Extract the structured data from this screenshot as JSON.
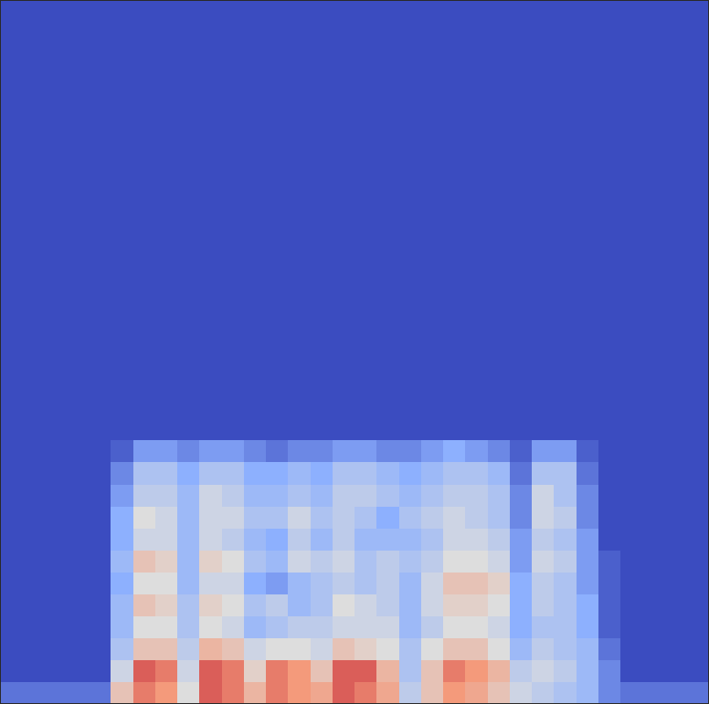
{
  "chart_data": {
    "type": "heatmap",
    "tick_labels": false,
    "xlim": [
      0,
      32
    ],
    "ylim": [
      0,
      32
    ],
    "zlim": [
      0,
      1
    ],
    "z": [
      [
        0.1,
        0.1,
        0.1,
        0.1,
        0.1,
        0.6,
        0.8,
        0.75,
        0.5,
        0.85,
        0.8,
        0.65,
        0.8,
        0.75,
        0.7,
        0.85,
        0.8,
        0.7,
        0.4,
        0.6,
        0.75,
        0.7,
        0.6,
        0.45,
        0.4,
        0.35,
        0.3,
        0.15,
        0.1,
        0.1,
        0.1,
        0.1
      ],
      [
        0,
        0,
        0,
        0,
        0,
        0.45,
        0.85,
        0.8,
        0.45,
        0.85,
        0.8,
        0.55,
        0.8,
        0.75,
        0.6,
        0.85,
        0.85,
        0.65,
        0.35,
        0.6,
        0.8,
        0.75,
        0.65,
        0.4,
        0.45,
        0.4,
        0.3,
        0.15,
        0,
        0,
        0,
        0
      ],
      [
        0,
        0,
        0,
        0,
        0,
        0.35,
        0.6,
        0.6,
        0.4,
        0.65,
        0.6,
        0.45,
        0.5,
        0.5,
        0.45,
        0.6,
        0.55,
        0.5,
        0.35,
        0.5,
        0.6,
        0.6,
        0.5,
        0.3,
        0.4,
        0.35,
        0.3,
        0.1,
        0,
        0,
        0,
        0
      ],
      [
        0,
        0,
        0,
        0,
        0,
        0.3,
        0.5,
        0.5,
        0.35,
        0.5,
        0.45,
        0.3,
        0.35,
        0.4,
        0.4,
        0.45,
        0.45,
        0.45,
        0.3,
        0.4,
        0.5,
        0.5,
        0.45,
        0.25,
        0.35,
        0.35,
        0.25,
        0.05,
        0,
        0,
        0,
        0
      ],
      [
        0,
        0,
        0,
        0,
        0,
        0.3,
        0.6,
        0.55,
        0.35,
        0.55,
        0.5,
        0.35,
        0.4,
        0.3,
        0.35,
        0.5,
        0.45,
        0.4,
        0.3,
        0.45,
        0.55,
        0.55,
        0.5,
        0.25,
        0.4,
        0.35,
        0.25,
        0.05,
        0,
        0,
        0,
        0
      ],
      [
        0,
        0,
        0,
        0,
        0,
        0.25,
        0.5,
        0.5,
        0.3,
        0.45,
        0.45,
        0.25,
        0.2,
        0.3,
        0.35,
        0.4,
        0.35,
        0.4,
        0.3,
        0.45,
        0.6,
        0.6,
        0.55,
        0.25,
        0.4,
        0.35,
        0.2,
        0.05,
        0,
        0,
        0,
        0
      ],
      [
        0,
        0,
        0,
        0,
        0,
        0.3,
        0.6,
        0.55,
        0.3,
        0.55,
        0.5,
        0.35,
        0.3,
        0.45,
        0.4,
        0.45,
        0.35,
        0.4,
        0.35,
        0.4,
        0.5,
        0.5,
        0.45,
        0.2,
        0.45,
        0.4,
        0.2,
        0.05,
        0,
        0,
        0,
        0
      ],
      [
        0,
        0,
        0,
        0,
        0,
        0.25,
        0.45,
        0.45,
        0.3,
        0.45,
        0.4,
        0.3,
        0.25,
        0.4,
        0.3,
        0.4,
        0.3,
        0.3,
        0.3,
        0.35,
        0.45,
        0.45,
        0.4,
        0.2,
        0.4,
        0.35,
        0.2,
        0,
        0,
        0,
        0,
        0
      ],
      [
        0,
        0,
        0,
        0,
        0,
        0.25,
        0.5,
        0.45,
        0.3,
        0.45,
        0.45,
        0.35,
        0.35,
        0.45,
        0.35,
        0.4,
        0.35,
        0.25,
        0.35,
        0.4,
        0.45,
        0.4,
        0.35,
        0.15,
        0.45,
        0.4,
        0.15,
        0,
        0,
        0,
        0,
        0
      ],
      [
        0,
        0,
        0,
        0,
        0,
        0.2,
        0.4,
        0.4,
        0.3,
        0.45,
        0.4,
        0.3,
        0.3,
        0.35,
        0.3,
        0.4,
        0.4,
        0.35,
        0.3,
        0.35,
        0.4,
        0.4,
        0.35,
        0.15,
        0.45,
        0.35,
        0.15,
        0,
        0,
        0,
        0,
        0
      ],
      [
        0,
        0,
        0,
        0,
        0,
        0.15,
        0.35,
        0.35,
        0.25,
        0.35,
        0.35,
        0.25,
        0.25,
        0.3,
        0.25,
        0.35,
        0.35,
        0.3,
        0.25,
        0.3,
        0.35,
        0.35,
        0.3,
        0.1,
        0.35,
        0.35,
        0.1,
        0,
        0,
        0,
        0,
        0
      ],
      [
        0,
        0,
        0,
        0,
        0,
        0.05,
        0.2,
        0.2,
        0.15,
        0.2,
        0.2,
        0.15,
        0.1,
        0.15,
        0.15,
        0.2,
        0.2,
        0.15,
        0.15,
        0.2,
        0.25,
        0.2,
        0.15,
        0.05,
        0.2,
        0.2,
        0.05,
        0,
        0,
        0,
        0,
        0
      ],
      [
        0,
        0,
        0,
        0,
        0,
        0,
        0,
        0,
        0,
        0,
        0,
        0,
        0,
        0,
        0,
        0,
        0,
        0,
        0,
        0,
        0,
        0,
        0,
        0,
        0,
        0,
        0,
        0,
        0,
        0,
        0,
        0
      ],
      [
        0,
        0,
        0,
        0,
        0,
        0,
        0,
        0,
        0,
        0,
        0,
        0,
        0,
        0,
        0,
        0,
        0,
        0,
        0,
        0,
        0,
        0,
        0,
        0,
        0,
        0,
        0,
        0,
        0,
        0,
        0,
        0
      ],
      [
        0,
        0,
        0,
        0,
        0,
        0,
        0,
        0,
        0,
        0,
        0,
        0,
        0,
        0,
        0,
        0,
        0,
        0,
        0,
        0,
        0,
        0,
        0,
        0,
        0,
        0,
        0,
        0,
        0,
        0,
        0,
        0
      ],
      [
        0,
        0,
        0,
        0,
        0,
        0,
        0,
        0,
        0,
        0,
        0,
        0,
        0,
        0,
        0,
        0,
        0,
        0,
        0,
        0,
        0,
        0,
        0,
        0,
        0,
        0,
        0,
        0,
        0,
        0,
        0,
        0
      ],
      [
        0,
        0,
        0,
        0,
        0,
        0,
        0,
        0,
        0,
        0,
        0,
        0,
        0,
        0,
        0,
        0,
        0,
        0,
        0,
        0,
        0,
        0,
        0,
        0,
        0,
        0,
        0,
        0,
        0,
        0,
        0,
        0
      ],
      [
        0,
        0,
        0,
        0,
        0,
        0,
        0,
        0,
        0,
        0,
        0,
        0,
        0,
        0,
        0,
        0,
        0,
        0,
        0,
        0,
        0,
        0,
        0,
        0,
        0,
        0,
        0,
        0,
        0,
        0,
        0,
        0
      ],
      [
        0,
        0,
        0,
        0,
        0,
        0,
        0,
        0,
        0,
        0,
        0,
        0,
        0,
        0,
        0,
        0,
        0,
        0,
        0,
        0,
        0,
        0,
        0,
        0,
        0,
        0,
        0,
        0,
        0,
        0,
        0,
        0
      ],
      [
        0,
        0,
        0,
        0,
        0,
        0,
        0,
        0,
        0,
        0,
        0,
        0,
        0,
        0,
        0,
        0,
        0,
        0,
        0,
        0,
        0,
        0,
        0,
        0,
        0,
        0,
        0,
        0,
        0,
        0,
        0,
        0
      ],
      [
        0,
        0,
        0,
        0,
        0,
        0,
        0,
        0,
        0,
        0,
        0,
        0,
        0,
        0,
        0,
        0,
        0,
        0,
        0,
        0,
        0,
        0,
        0,
        0,
        0,
        0,
        0,
        0,
        0,
        0,
        0,
        0
      ],
      [
        0,
        0,
        0,
        0,
        0,
        0,
        0,
        0,
        0,
        0,
        0,
        0,
        0,
        0,
        0,
        0,
        0,
        0,
        0,
        0,
        0,
        0,
        0,
        0,
        0,
        0,
        0,
        0,
        0,
        0,
        0,
        0
      ],
      [
        0,
        0,
        0,
        0,
        0,
        0,
        0,
        0,
        0,
        0,
        0,
        0,
        0,
        0,
        0,
        0,
        0,
        0,
        0,
        0,
        0,
        0,
        0,
        0,
        0,
        0,
        0,
        0,
        0,
        0,
        0,
        0
      ],
      [
        0,
        0,
        0,
        0,
        0,
        0,
        0,
        0,
        0,
        0,
        0,
        0,
        0,
        0,
        0,
        0,
        0,
        0,
        0,
        0,
        0,
        0,
        0,
        0,
        0,
        0,
        0,
        0,
        0,
        0,
        0,
        0
      ],
      [
        0,
        0,
        0,
        0,
        0,
        0,
        0,
        0,
        0,
        0,
        0,
        0,
        0,
        0,
        0,
        0,
        0,
        0,
        0,
        0,
        0,
        0,
        0,
        0,
        0,
        0,
        0,
        0,
        0,
        0,
        0,
        0
      ],
      [
        0,
        0,
        0,
        0,
        0,
        0,
        0,
        0,
        0,
        0,
        0,
        0,
        0,
        0,
        0,
        0,
        0,
        0,
        0,
        0,
        0,
        0,
        0,
        0,
        0,
        0,
        0,
        0,
        0,
        0,
        0,
        0
      ],
      [
        0,
        0,
        0,
        0,
        0,
        0,
        0,
        0,
        0,
        0,
        0,
        0,
        0,
        0,
        0,
        0,
        0,
        0,
        0,
        0,
        0,
        0,
        0,
        0,
        0,
        0,
        0,
        0,
        0,
        0,
        0,
        0
      ],
      [
        0,
        0,
        0,
        0,
        0,
        0,
        0,
        0,
        0,
        0,
        0,
        0,
        0,
        0,
        0,
        0,
        0,
        0,
        0,
        0,
        0,
        0,
        0,
        0,
        0,
        0,
        0,
        0,
        0,
        0,
        0,
        0
      ],
      [
        0,
        0,
        0,
        0,
        0,
        0,
        0,
        0,
        0,
        0,
        0,
        0,
        0,
        0,
        0,
        0,
        0,
        0,
        0,
        0,
        0,
        0,
        0,
        0,
        0,
        0,
        0,
        0,
        0,
        0,
        0,
        0
      ],
      [
        0,
        0,
        0,
        0,
        0,
        0,
        0,
        0,
        0,
        0,
        0,
        0,
        0,
        0,
        0,
        0,
        0,
        0,
        0,
        0,
        0,
        0,
        0,
        0,
        0,
        0,
        0,
        0,
        0,
        0,
        0,
        0
      ],
      [
        0,
        0,
        0,
        0,
        0,
        0,
        0,
        0,
        0,
        0,
        0,
        0,
        0,
        0,
        0,
        0,
        0,
        0,
        0,
        0,
        0,
        0,
        0,
        0,
        0,
        0,
        0,
        0,
        0,
        0,
        0,
        0
      ],
      [
        0,
        0,
        0,
        0,
        0,
        0,
        0,
        0,
        0,
        0,
        0,
        0,
        0,
        0,
        0,
        0,
        0,
        0,
        0,
        0,
        0,
        0,
        0,
        0,
        0,
        0,
        0,
        0,
        0,
        0,
        0,
        0
      ]
    ]
  }
}
